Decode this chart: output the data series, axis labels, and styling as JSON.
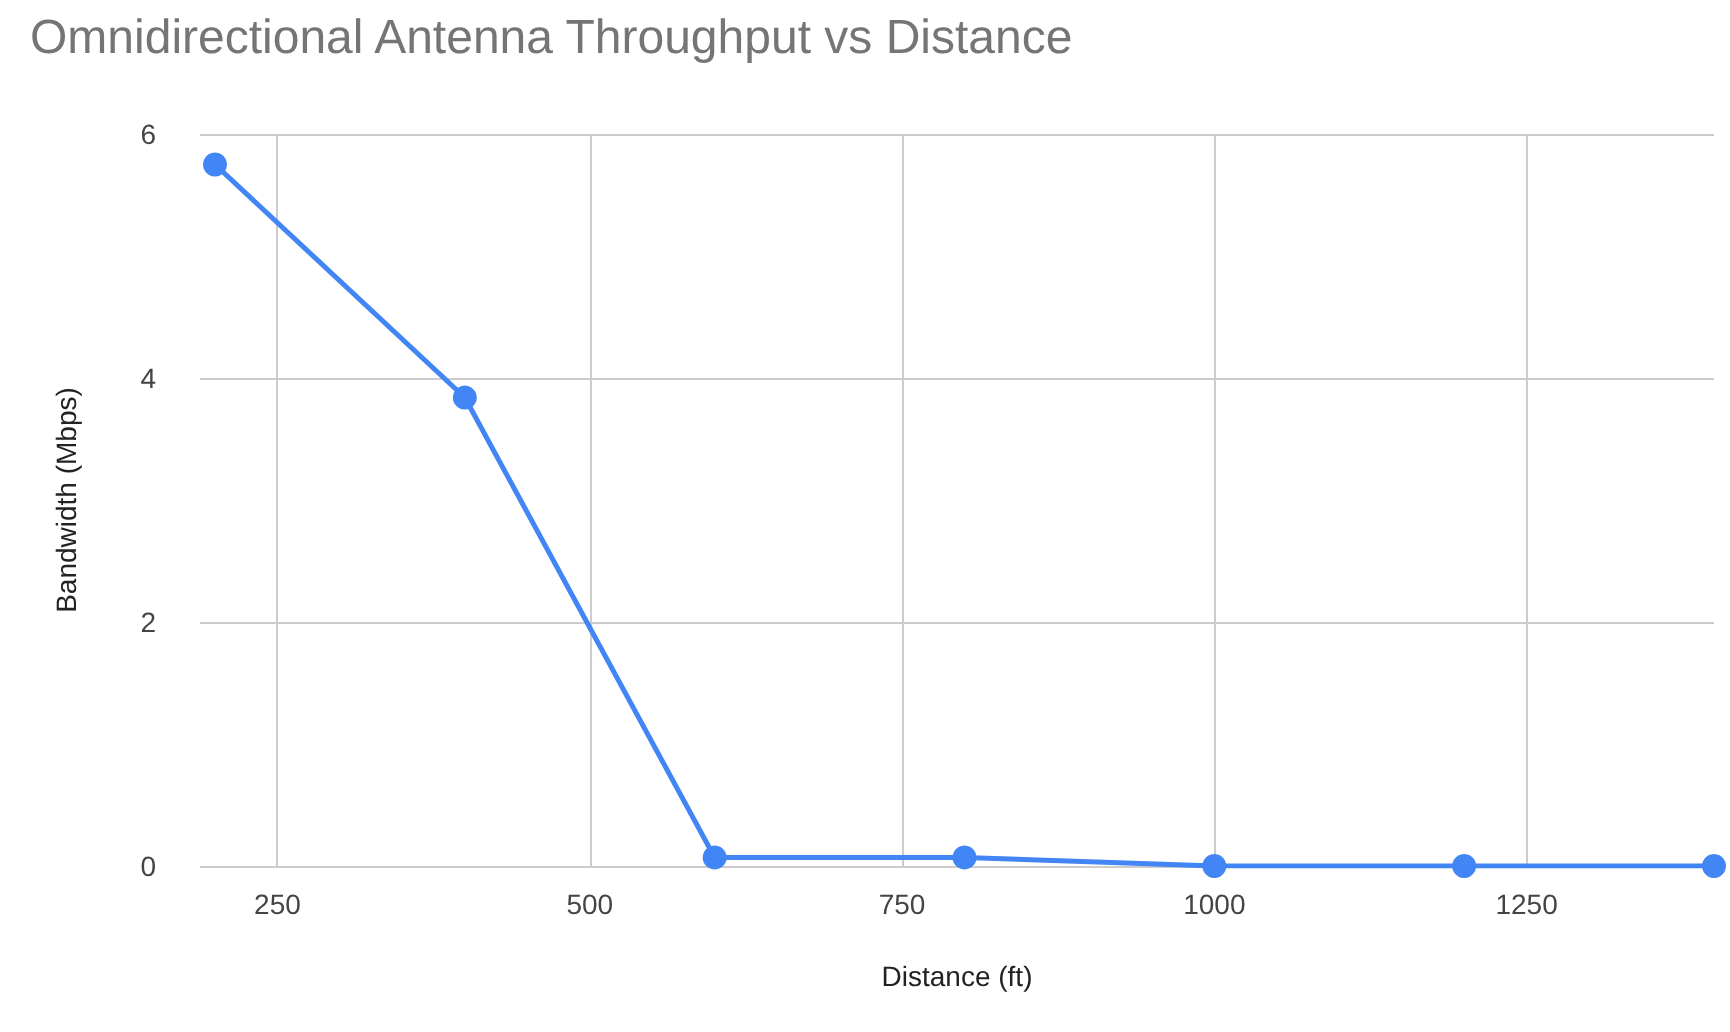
{
  "chart_data": {
    "type": "line",
    "title": "Omnidirectional Antenna Throughput vs Distance",
    "xlabel": "Distance (ft)",
    "ylabel": "Bandwidth (Mbps)",
    "x": [
      200,
      400,
      600,
      800,
      1000,
      1200,
      1400
    ],
    "series": [
      {
        "color": "#4285f4",
        "values": [
          5.75,
          3.84,
          0.07,
          0.07,
          0,
          0,
          0
        ]
      }
    ],
    "xlim": [
      188,
      1400
    ],
    "xticks": [
      250,
      500,
      750,
      1000,
      1250
    ],
    "ylim": [
      0,
      6
    ],
    "yticks": [
      0,
      2,
      4,
      6
    ],
    "grid": true,
    "marker": "circle",
    "line_style": "solid"
  }
}
